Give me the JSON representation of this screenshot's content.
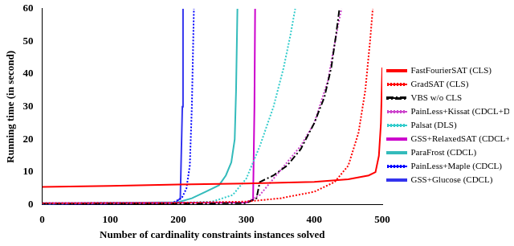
{
  "chart_data": {
    "type": "line",
    "x_label": "Number of cardinality constraints instances solved",
    "y_label": "Running time (in second)",
    "xlim": [
      0,
      500
    ],
    "xticks": [
      0,
      100,
      200,
      300,
      400,
      500
    ],
    "ylim": [
      0,
      60
    ],
    "yticks": [
      0,
      10,
      20,
      30,
      40,
      50,
      60
    ],
    "grid": false,
    "legend": "right",
    "series": [
      {
        "name": "FastFourierSAT (CLS)",
        "color": "#ff0000",
        "line_style": "solid",
        "x": [
          0,
          100,
          200,
          300,
          400,
          450,
          480,
          490,
          495,
          498,
          500
        ],
        "values": [
          5.5,
          5.8,
          6.2,
          6.5,
          7,
          7.8,
          9,
          10,
          15,
          25,
          42
        ]
      },
      {
        "name": "GradSAT (CLS)",
        "color": "#ff0000",
        "line_style": "dotted",
        "x": [
          0,
          200,
          300,
          350,
          400,
          430,
          450,
          465,
          475,
          482,
          486
        ],
        "values": [
          0.5,
          0.6,
          1,
          2,
          4,
          7,
          12,
          22,
          35,
          50,
          60
        ]
      },
      {
        "name": "VBS w/o CLS",
        "color": "#000000",
        "line_style": "dashdot",
        "x": [
          0,
          300,
          315,
          320,
          340,
          360,
          380,
          400,
          415,
          425,
          432,
          437
        ],
        "values": [
          0.3,
          0.5,
          2,
          7,
          9,
          12,
          17,
          25,
          33,
          42,
          52,
          60
        ]
      },
      {
        "name": "PainLess+Kissat (CDCL+DLS)",
        "color": "#cc44cc",
        "line_style": "dotted",
        "x": [
          0,
          300,
          320,
          340,
          360,
          380,
          400,
          420,
          435,
          440
        ],
        "values": [
          0.4,
          0.8,
          3,
          8,
          13,
          18,
          25,
          38,
          55,
          60
        ]
      },
      {
        "name": "Palsat (DLS)",
        "color": "#33cccc",
        "line_style": "dotted",
        "x": [
          0,
          200,
          250,
          280,
          300,
          320,
          340,
          355,
          365,
          372
        ],
        "values": [
          0.5,
          0.6,
          1,
          3,
          8,
          18,
          30,
          42,
          52,
          60
        ]
      },
      {
        "name": "GSS+RelaxedSAT (CDCL+DLS)",
        "color": "#cc00cc",
        "line_style": "solid",
        "x": [
          0,
          300,
          310,
          312,
          313
        ],
        "values": [
          0.5,
          0.7,
          1.5,
          30,
          60
        ]
      },
      {
        "name": "ParaFrost (CDCL)",
        "color": "#33bbbb",
        "line_style": "solid",
        "x": [
          0,
          200,
          220,
          240,
          260,
          270,
          278,
          283,
          285,
          287
        ],
        "values": [
          0.3,
          0.8,
          2,
          4,
          6,
          9,
          13,
          20,
          35,
          60
        ]
      },
      {
        "name": "PainLess+Maple (CDCL)",
        "color": "#0000ff",
        "line_style": "dotted",
        "x": [
          0,
          190,
          205,
          212,
          217,
          220,
          223
        ],
        "values": [
          0.2,
          0.5,
          2,
          5,
          12,
          30,
          60
        ]
      },
      {
        "name": "GSS+Glucose (CDCL)",
        "color": "#3333ee",
        "line_style": "solid",
        "x": [
          0,
          195,
          203,
          206,
          207
        ],
        "values": [
          0.3,
          0.5,
          2,
          30,
          60
        ]
      }
    ]
  }
}
